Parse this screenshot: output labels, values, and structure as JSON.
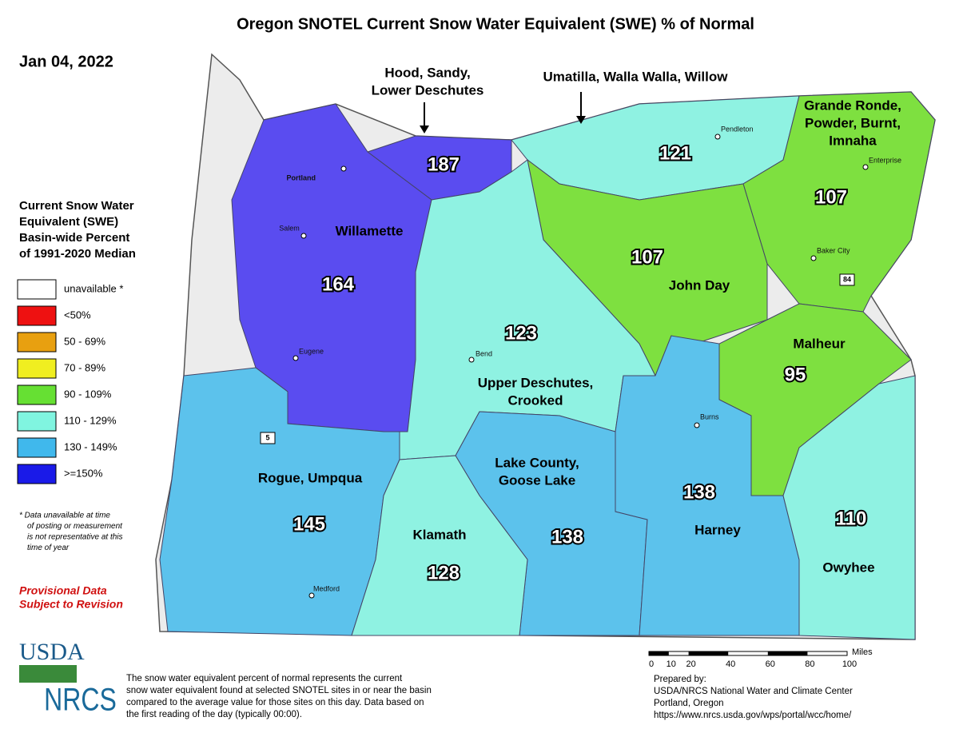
{
  "header": {
    "title": "Oregon SNOTEL Current Snow Water Equivalent (SWE) % of Normal",
    "date": "Jan 04, 2022"
  },
  "legend": {
    "title": [
      "Current Snow Water",
      "Equivalent (SWE)",
      "Basin-wide Percent",
      "of 1991-2020 Median"
    ],
    "items": [
      {
        "label": "unavailable *",
        "color": "#ffffff"
      },
      {
        "label": "<50%",
        "color": "#ee1111"
      },
      {
        "label": "50 - 69%",
        "color": "#e8a010"
      },
      {
        "label": "70 - 89%",
        "color": "#f0ee20"
      },
      {
        "label": "90 - 109%",
        "color": "#66e033"
      },
      {
        "label": "110 - 129%",
        "color": "#80f5e0"
      },
      {
        "label": "130 - 149%",
        "color": "#40b8ec"
      },
      {
        "label": ">=150%",
        "color": "#1a1ae8"
      }
    ],
    "footnote": [
      "*  Data unavailable at time",
      "of posting or measurement",
      "is not representative at this",
      "time of year"
    ]
  },
  "provisional": [
    "Provisional Data",
    "Subject to Revision"
  ],
  "basins": [
    {
      "name": [
        "Hood, Sandy,",
        "Lower Deschutes"
      ],
      "value": 187,
      "color": "#5a4cf0"
    },
    {
      "name": [
        "Umatilla, Walla Walla, Willow"
      ],
      "value": 121,
      "color": "#8ff2e2"
    },
    {
      "name": [
        "Grande Ronde,",
        "Powder, Burnt,",
        "Imnaha"
      ],
      "value": 107,
      "color": "#7ee040"
    },
    {
      "name": [
        "John Day"
      ],
      "value": 107,
      "color": "#7ee040"
    },
    {
      "name": [
        "Willamette"
      ],
      "value": 164,
      "color": "#5a4cf0"
    },
    {
      "name": [
        "Upper Deschutes,",
        "Crooked"
      ],
      "value": 123,
      "color": "#8ff2e2"
    },
    {
      "name": [
        "Malheur"
      ],
      "value": 95,
      "color": "#7ee040"
    },
    {
      "name": [
        "Lake County,",
        "Goose Lake"
      ],
      "value": 138,
      "color": "#5cc2ec"
    },
    {
      "name": [
        "Harney"
      ],
      "value": 138,
      "color": "#5cc2ec"
    },
    {
      "name": [
        "Owyhee"
      ],
      "value": 110,
      "color": "#8ff2e2"
    },
    {
      "name": [
        "Rogue, Umpqua"
      ],
      "value": 145,
      "color": "#5cc2ec"
    },
    {
      "name": [
        "Klamath"
      ],
      "value": 128,
      "color": "#8ff2e2"
    }
  ],
  "cities": [
    "Portland",
    "Salem",
    "Eugene",
    "Medford",
    "Bend",
    "Burns",
    "Pendleton",
    "Enterprise",
    "Baker City"
  ],
  "highways": [
    "5",
    "84"
  ],
  "scale": {
    "unit": "Miles",
    "ticks": [
      0,
      10,
      20,
      40,
      60,
      80,
      100
    ]
  },
  "description": [
    "The snow water equivalent percent of normal represents the current",
    "snow water equivalent found at selected SNOTEL sites in or near the basin",
    "compared to the average value for those sites on this day. Data based on",
    "the first reading of the day (typically 00:00)."
  ],
  "prepared": [
    "Prepared by:",
    "USDA/NRCS National Water and Climate Center",
    "Portland, Oregon",
    "https://www.nrcs.usda.gov/wps/portal/wcc/home/"
  ],
  "logos": {
    "usda": "USDA",
    "nrcs": "NRCS"
  }
}
